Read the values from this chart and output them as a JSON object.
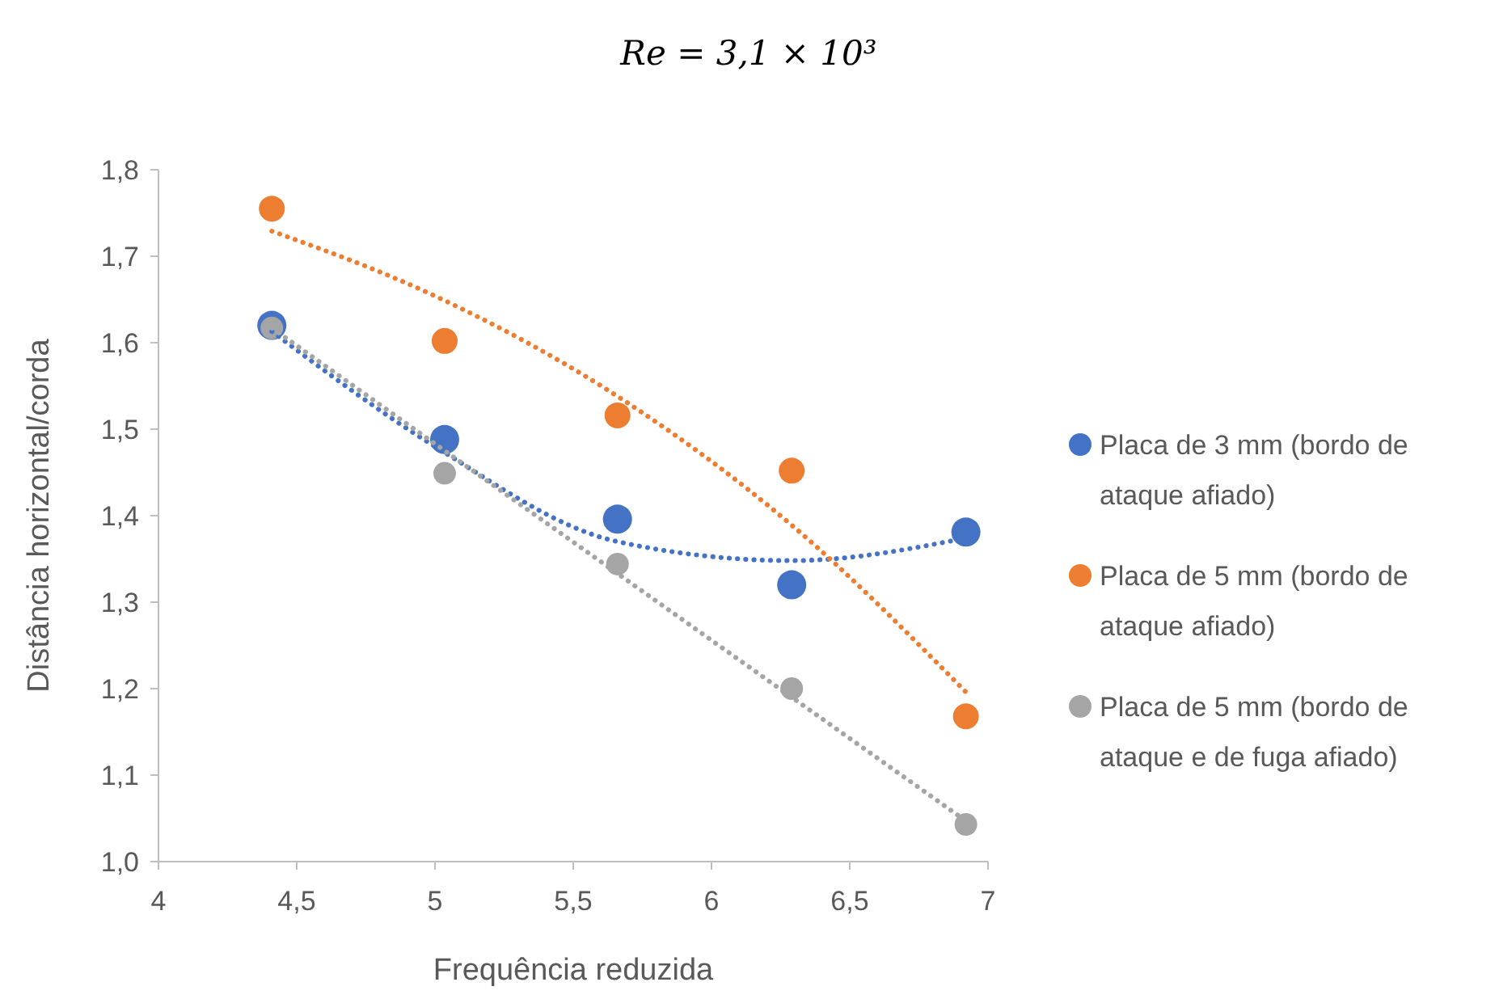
{
  "chart_data": {
    "type": "scatter",
    "title": "Re = 3,1 × 10³",
    "xlabel": "Frequência reduzida",
    "ylabel": "Distância horizontal/corda",
    "xlim": [
      4,
      7
    ],
    "ylim": [
      1.0,
      1.8
    ],
    "xticks": [
      4,
      {
        "value": 4.5,
        "label": "4,5"
      },
      5,
      {
        "value": 5.5,
        "label": "5,5"
      },
      6,
      {
        "value": 6.5,
        "label": "6,5"
      },
      7
    ],
    "yticks": [
      {
        "value": 1.0,
        "label": "1,0"
      },
      {
        "value": 1.1,
        "label": "1,1"
      },
      {
        "value": 1.2,
        "label": "1,2"
      },
      {
        "value": 1.3,
        "label": "1,3"
      },
      {
        "value": 1.4,
        "label": "1,4"
      },
      {
        "value": 1.5,
        "label": "1,5"
      },
      {
        "value": 1.6,
        "label": "1,6"
      },
      {
        "value": 1.7,
        "label": "1,7"
      },
      {
        "value": 1.8,
        "label": "1,8"
      }
    ],
    "x": [
      4.41,
      5.035,
      5.66,
      6.29,
      6.92
    ],
    "marker": "circle",
    "legend": "right",
    "grid": false,
    "series": [
      {
        "name": "Placa de 3 mm (bordo de ataque afiado)",
        "color": "#4472c4",
        "values": [
          1.62,
          1.488,
          1.396,
          1.32,
          1.381
        ]
      },
      {
        "name": "Placa de 5 mm (bordo de ataque afiado)",
        "color": "#ed7d31",
        "values": [
          1.755,
          1.602,
          1.516,
          1.452,
          1.168
        ]
      },
      {
        "name": "Placa de 5 mm (bordo de ataque e de fuga afiado)",
        "color": "#a5a5a5",
        "values": [
          1.617,
          1.449,
          1.344,
          1.2,
          1.043
        ]
      },
      {
        "type": "line",
        "line_style": "dotted",
        "marker": "none",
        "color": "#4472c4",
        "x": [
          4.41,
          5.0,
          5.66,
          6.29,
          6.92
        ],
        "values": [
          1.613,
          1.48,
          1.37,
          1.348,
          1.374
        ]
      },
      {
        "type": "line",
        "line_style": "dotted",
        "marker": "none",
        "color": "#ed7d31",
        "x": [
          4.41,
          5.0,
          5.66,
          6.29,
          6.92
        ],
        "values": [
          1.729,
          1.654,
          1.538,
          1.389,
          1.196
        ]
      },
      {
        "type": "line",
        "line_style": "dotted",
        "marker": "none",
        "color": "#a5a5a5",
        "x": [
          4.41,
          6.92
        ],
        "values": [
          1.617,
          1.047
        ]
      }
    ]
  }
}
